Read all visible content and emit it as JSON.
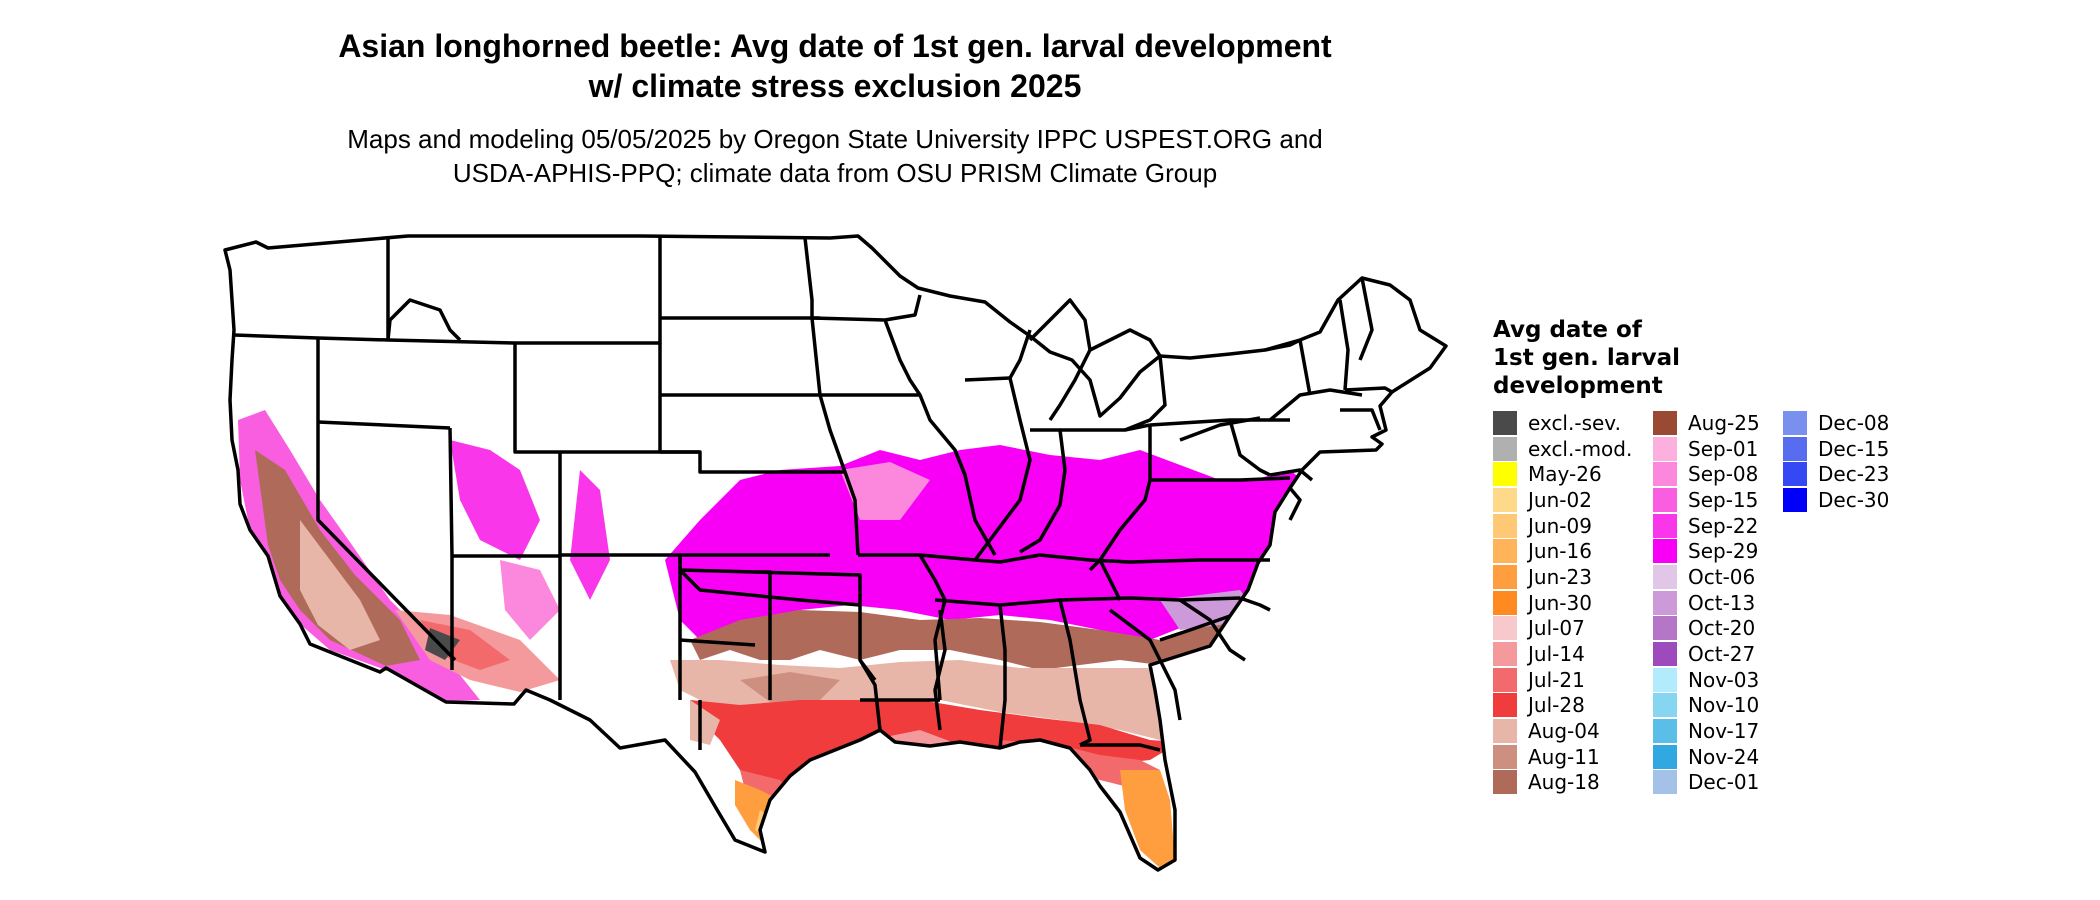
{
  "title": {
    "line1": "Asian longhorned beetle: Avg date of 1st gen. larval development",
    "line2": "w/ climate stress exclusion 2025"
  },
  "subtitle": {
    "line1": "Maps and modeling 05/05/2025 by Oregon State University IPPC USPEST.ORG and",
    "line2": "USDA-APHIS-PPQ; climate data from OSU PRISM Climate Group"
  },
  "legend": {
    "title_lines": [
      "Avg date of",
      "1st gen. larval",
      "development"
    ],
    "columns": [
      [
        {
          "label": "excl.-sev.",
          "color": "#4a4a4a"
        },
        {
          "label": "excl.-mod.",
          "color": "#b0b0b0"
        },
        {
          "label": "May-26",
          "color": "#ffff00"
        },
        {
          "label": "Jun-02",
          "color": "#ffd98a"
        },
        {
          "label": "Jun-09",
          "color": "#ffc874"
        },
        {
          "label": "Jun-16",
          "color": "#ffb45a"
        },
        {
          "label": "Jun-23",
          "color": "#ff9e3e"
        },
        {
          "label": "Jun-30",
          "color": "#ff8a22"
        },
        {
          "label": "Jul-07",
          "color": "#f7c8cc"
        },
        {
          "label": "Jul-14",
          "color": "#f59a9c"
        },
        {
          "label": "Jul-21",
          "color": "#f26a6c"
        },
        {
          "label": "Jul-28",
          "color": "#f03c3c"
        },
        {
          "label": "Aug-04",
          "color": "#e8b6a8"
        },
        {
          "label": "Aug-11",
          "color": "#cc8f80"
        },
        {
          "label": "Aug-18",
          "color": "#b06a5a"
        }
      ],
      [
        {
          "label": "Aug-25",
          "color": "#9a4a32"
        },
        {
          "label": "Sep-01",
          "color": "#fcb0de"
        },
        {
          "label": "Sep-08",
          "color": "#fb88dc"
        },
        {
          "label": "Sep-15",
          "color": "#fa5ee0"
        },
        {
          "label": "Sep-22",
          "color": "#f936ea"
        },
        {
          "label": "Sep-29",
          "color": "#f700f5"
        },
        {
          "label": "Oct-06",
          "color": "#e2c6e8"
        },
        {
          "label": "Oct-13",
          "color": "#cc9ad8"
        },
        {
          "label": "Oct-20",
          "color": "#b676c8"
        },
        {
          "label": "Oct-27",
          "color": "#9c4abc"
        },
        {
          "label": "Nov-03",
          "color": "#b2ecfc"
        },
        {
          "label": "Nov-10",
          "color": "#86d6f2"
        },
        {
          "label": "Nov-17",
          "color": "#5abee8"
        },
        {
          "label": "Nov-24",
          "color": "#32a8e0"
        },
        {
          "label": "Dec-01",
          "color": "#a4c2e8"
        }
      ],
      [
        {
          "label": "Dec-08",
          "color": "#7a90ee"
        },
        {
          "label": "Dec-15",
          "color": "#586cf0"
        },
        {
          "label": "Dec-23",
          "color": "#3448f4"
        },
        {
          "label": "Dec-30",
          "color": "#0000f8"
        }
      ]
    ]
  }
}
